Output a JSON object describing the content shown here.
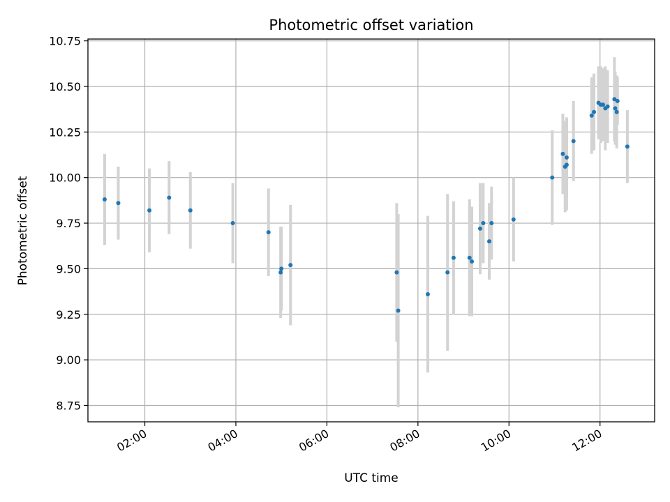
{
  "chart_data": {
    "type": "scatter",
    "title": "Photometric offset variation",
    "xlabel": "UTC time",
    "ylabel": "Photometric offset",
    "x_axis_type": "time",
    "xlim": [
      "00:45",
      "13:12"
    ],
    "ylim": [
      8.66,
      10.76
    ],
    "grid": true,
    "x_ticks": [
      "02:00",
      "04:00",
      "06:00",
      "08:00",
      "10:00",
      "12:00"
    ],
    "y_ticks": [
      8.75,
      9.0,
      9.25,
      9.5,
      9.75,
      10.0,
      10.25,
      10.5,
      10.75
    ],
    "y_tick_labels": [
      "8.75",
      "9.00",
      "9.25",
      "9.50",
      "9.75",
      "10.00",
      "10.25",
      "10.50",
      "10.75"
    ],
    "colors": {
      "points": "#1f77b4",
      "error_bars": "#d3d3d3",
      "grid": "#b0b0b0"
    },
    "series": [
      {
        "points": [
          {
            "x": "01:07",
            "y": 9.88,
            "err": 0.25
          },
          {
            "x": "01:25",
            "y": 9.86,
            "err": 0.2
          },
          {
            "x": "02:06",
            "y": 9.82,
            "err": 0.23
          },
          {
            "x": "02:32",
            "y": 9.89,
            "err": 0.2
          },
          {
            "x": "03:00",
            "y": 9.82,
            "err": 0.21
          },
          {
            "x": "03:56",
            "y": 9.75,
            "err": 0.22
          },
          {
            "x": "04:43",
            "y": 9.7,
            "err": 0.24
          },
          {
            "x": "04:59",
            "y": 9.48,
            "err": 0.25
          },
          {
            "x": "05:00",
            "y": 9.5,
            "err": 0.23
          },
          {
            "x": "05:12",
            "y": 9.52,
            "err": 0.33
          },
          {
            "x": "07:32",
            "y": 9.48,
            "err": 0.38
          },
          {
            "x": "07:34",
            "y": 9.27,
            "err": 0.53
          },
          {
            "x": "08:13",
            "y": 9.36,
            "err": 0.43
          },
          {
            "x": "08:39",
            "y": 9.48,
            "err": 0.43
          },
          {
            "x": "08:47",
            "y": 9.56,
            "err": 0.31
          },
          {
            "x": "09:08",
            "y": 9.56,
            "err": 0.32
          },
          {
            "x": "09:11",
            "y": 9.54,
            "err": 0.3
          },
          {
            "x": "09:22",
            "y": 9.72,
            "err": 0.25
          },
          {
            "x": "09:26",
            "y": 9.75,
            "err": 0.22
          },
          {
            "x": "09:34",
            "y": 9.65,
            "err": 0.21
          },
          {
            "x": "09:37",
            "y": 9.75,
            "err": 0.2
          },
          {
            "x": "10:06",
            "y": 9.77,
            "err": 0.23
          },
          {
            "x": "10:57",
            "y": 10.0,
            "err": 0.26
          },
          {
            "x": "11:11",
            "y": 10.13,
            "err": 0.22
          },
          {
            "x": "11:14",
            "y": 10.06,
            "err": 0.25
          },
          {
            "x": "11:16",
            "y": 10.07,
            "err": 0.25
          },
          {
            "x": "11:16",
            "y": 10.11,
            "err": 0.22
          },
          {
            "x": "11:25",
            "y": 10.2,
            "err": 0.22
          },
          {
            "x": "11:49",
            "y": 10.34,
            "err": 0.21
          },
          {
            "x": "11:52",
            "y": 10.36,
            "err": 0.21
          },
          {
            "x": "11:58",
            "y": 10.41,
            "err": 0.2
          },
          {
            "x": "12:01",
            "y": 10.4,
            "err": 0.21
          },
          {
            "x": "12:04",
            "y": 10.4,
            "err": 0.2
          },
          {
            "x": "12:07",
            "y": 10.38,
            "err": 0.23
          },
          {
            "x": "12:10",
            "y": 10.39,
            "err": 0.2
          },
          {
            "x": "12:19",
            "y": 10.43,
            "err": 0.23
          },
          {
            "x": "12:20",
            "y": 10.38,
            "err": 0.2
          },
          {
            "x": "12:22",
            "y": 10.36,
            "err": 0.2
          },
          {
            "x": "12:23",
            "y": 10.42,
            "err": 0.13
          },
          {
            "x": "12:36",
            "y": 10.17,
            "err": 0.2
          }
        ]
      }
    ]
  }
}
